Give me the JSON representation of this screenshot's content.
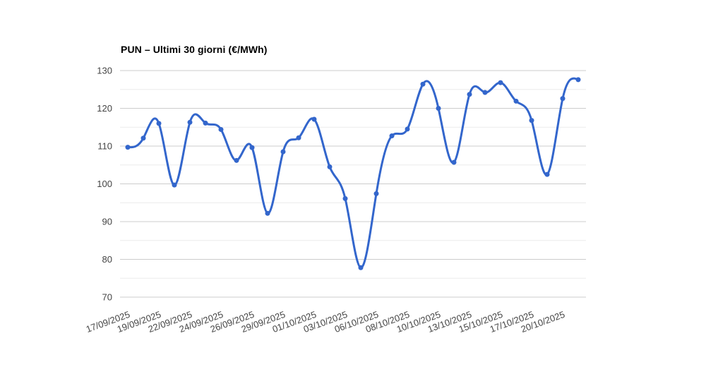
{
  "chart_data": {
    "type": "line",
    "title": "PUN – Ultimi 30 giorni (€/MWh)",
    "smooth": true,
    "background": "#ffffff",
    "series": [
      {
        "name": "PUN",
        "color": "#3366cc",
        "values": [
          109.7,
          112.1,
          116.0,
          99.7,
          116.3,
          116.1,
          114.4,
          106.2,
          109.6,
          92.2,
          108.5,
          112.2,
          117.1,
          104.5,
          96.1,
          77.8,
          97.4,
          112.7,
          114.5,
          126.4,
          120.0,
          105.7,
          123.7,
          124.2,
          126.8,
          121.9,
          116.8,
          102.5,
          122.6,
          127.6
        ]
      }
    ],
    "point_count": 30,
    "x_tick_labels": [
      "17/09/2025",
      "19/09/2025",
      "22/09/2025",
      "24/09/2025",
      "26/09/2025",
      "29/09/2025",
      "01/10/2025",
      "03/10/2025",
      "06/10/2025",
      "08/10/2025",
      "10/10/2025",
      "13/10/2025",
      "15/10/2025",
      "17/10/2025",
      "20/10/2025"
    ],
    "label_every_n_points": 2,
    "x_label_angle_deg": -20,
    "ylabel": "",
    "xlabel": "",
    "ylim": [
      70,
      130
    ],
    "y_ticks": [
      70,
      80,
      90,
      100,
      110,
      120,
      130
    ],
    "y_minor_ticks": [
      75,
      85,
      95,
      105,
      115,
      125
    ],
    "grid": {
      "on": true,
      "major_color": "#cccccc",
      "minor_color": "#ebebeb"
    },
    "axis_label_color": "#444444",
    "legend": "none",
    "line_width": 3,
    "point_radius": 3.5
  }
}
